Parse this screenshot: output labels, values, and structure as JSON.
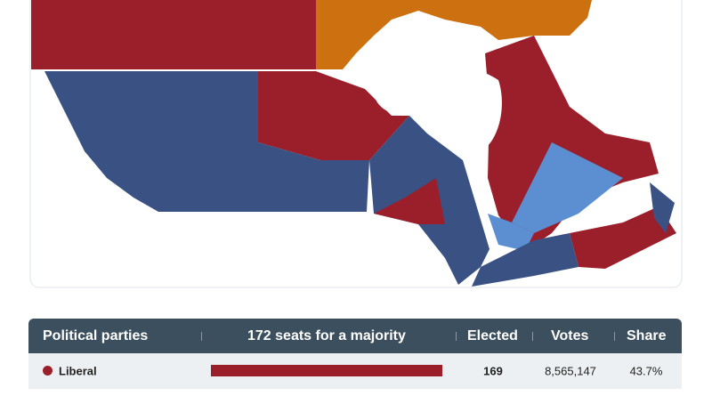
{
  "table": {
    "headers": {
      "party": "Political parties",
      "majority": 172,
      "majority_text": "seats for a majority",
      "elected": "Elected",
      "votes": "Votes",
      "share": "Share"
    },
    "rows": [
      {
        "party": "Liberal",
        "color": "#9b1f2a",
        "seats": 169,
        "votes": "8,565,147",
        "share": "43.7%"
      }
    ]
  }
}
